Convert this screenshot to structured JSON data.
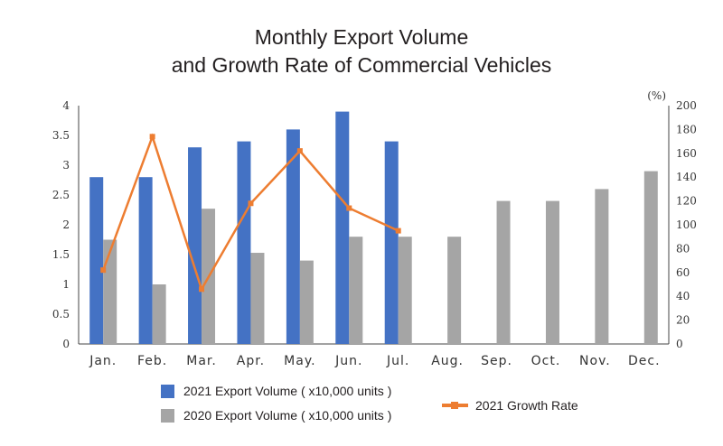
{
  "chart_data": {
    "type": "bar",
    "title": "Monthly Export Volume",
    "subtitle": "and Growth Rate of Commercial Vehicles",
    "categories": [
      "Jan.",
      "Feb.",
      "Mar.",
      "Apr.",
      "May.",
      "Jun.",
      "Jul.",
      "Aug.",
      "Sep.",
      "Oct.",
      "Nov.",
      "Dec."
    ],
    "series": [
      {
        "name": "2021 Export Volume ( x10,000 units )",
        "type": "bar",
        "axis": "left",
        "color": "#4472c4",
        "values": [
          2.8,
          2.8,
          3.3,
          3.4,
          3.6,
          3.9,
          3.4,
          null,
          null,
          null,
          null,
          null
        ]
      },
      {
        "name": "2020 Export Volume ( x10,000 units )",
        "type": "bar",
        "axis": "left",
        "color": "#a5a5a5",
        "values": [
          1.75,
          1.0,
          2.27,
          1.53,
          1.4,
          1.8,
          1.8,
          1.8,
          2.4,
          2.4,
          2.6,
          2.9
        ]
      },
      {
        "name": "2021 Growth Rate",
        "type": "line",
        "axis": "right",
        "color": "#ed7d31",
        "values": [
          62,
          174,
          46,
          118,
          162,
          114,
          95,
          null,
          null,
          null,
          null,
          null
        ]
      }
    ],
    "ylim": [
      0,
      4
    ],
    "yticks": [
      "0",
      "0.5",
      "1",
      "1.5",
      "2",
      "2.5",
      "3",
      "3.5",
      "4"
    ],
    "y2lim": [
      0,
      200
    ],
    "y2ticks": [
      "0",
      "20",
      "40",
      "60",
      "80",
      "100",
      "120",
      "140",
      "160",
      "180",
      "200"
    ],
    "y2unit": "(%)",
    "grid": false,
    "legend": "bottom"
  }
}
